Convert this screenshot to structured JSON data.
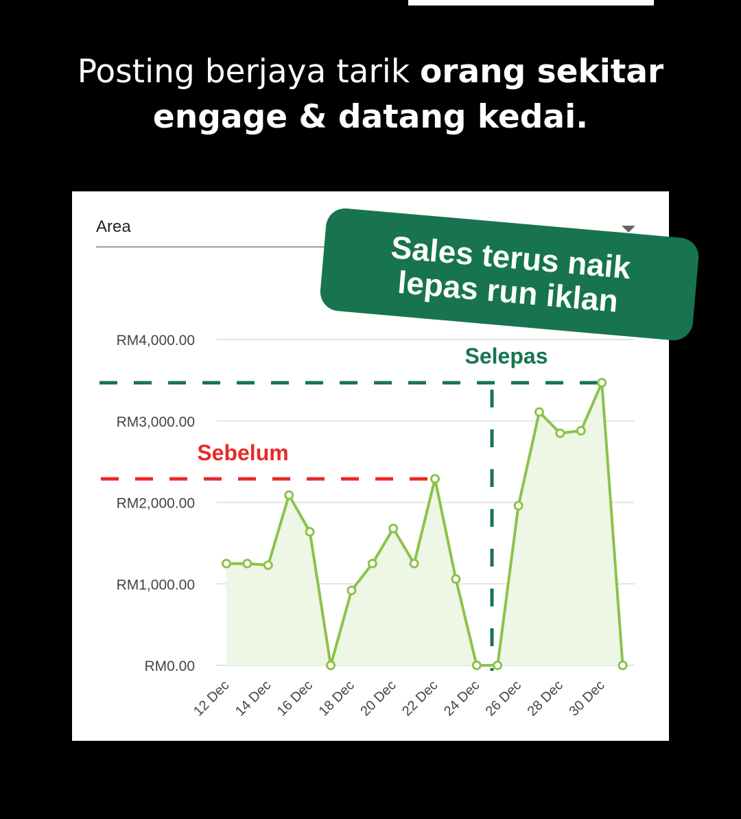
{
  "headline": {
    "regular": "Posting berjaya tarik ",
    "bold1": "orang sekitar",
    "bold2": "engage & datang kedai."
  },
  "dropdown": {
    "label": "Area"
  },
  "badge": {
    "line1": "Sales terus naik",
    "line2": "lepas run iklan"
  },
  "annotations": {
    "before": "Sebelum",
    "after": "Selepas"
  },
  "colors": {
    "line": "#8bc34a",
    "fill": "#eef6e6",
    "after": "#17744f",
    "before": "#e8292a"
  },
  "chart_data": {
    "type": "area",
    "x": [
      "12 Dec",
      "13 Dec",
      "14 Dec",
      "15 Dec",
      "16 Dec",
      "17 Dec",
      "18 Dec",
      "19 Dec",
      "20 Dec",
      "21 Dec",
      "22 Dec",
      "23 Dec",
      "24 Dec",
      "25 Dec",
      "26 Dec",
      "27 Dec",
      "28 Dec",
      "29 Dec",
      "30 Dec",
      "31 Dec"
    ],
    "values": [
      1250,
      1250,
      1230,
      2090,
      1640,
      0,
      920,
      1250,
      1680,
      1250,
      2290,
      1060,
      0,
      0,
      1960,
      3110,
      2850,
      2880,
      3470,
      0
    ],
    "x_tick_labels": [
      "12 Dec",
      "14 Dec",
      "16 Dec",
      "18 Dec",
      "20 Dec",
      "22 Dec",
      "24 Dec",
      "26 Dec",
      "28 Dec",
      "30 Dec"
    ],
    "y_tick_labels": [
      "RM0.00",
      "RM1,000.00",
      "RM2,000.00",
      "RM3,000.00",
      "RM4,000.00"
    ],
    "y_ticks": [
      0,
      1000,
      2000,
      3000,
      4000
    ],
    "ylim": [
      0,
      4000
    ],
    "grid": true,
    "reference_lines": [
      {
        "label": "Sebelum",
        "value": 2290,
        "orientation": "horizontal"
      },
      {
        "label": "Selepas",
        "value": 3470,
        "orientation": "horizontal"
      }
    ]
  }
}
